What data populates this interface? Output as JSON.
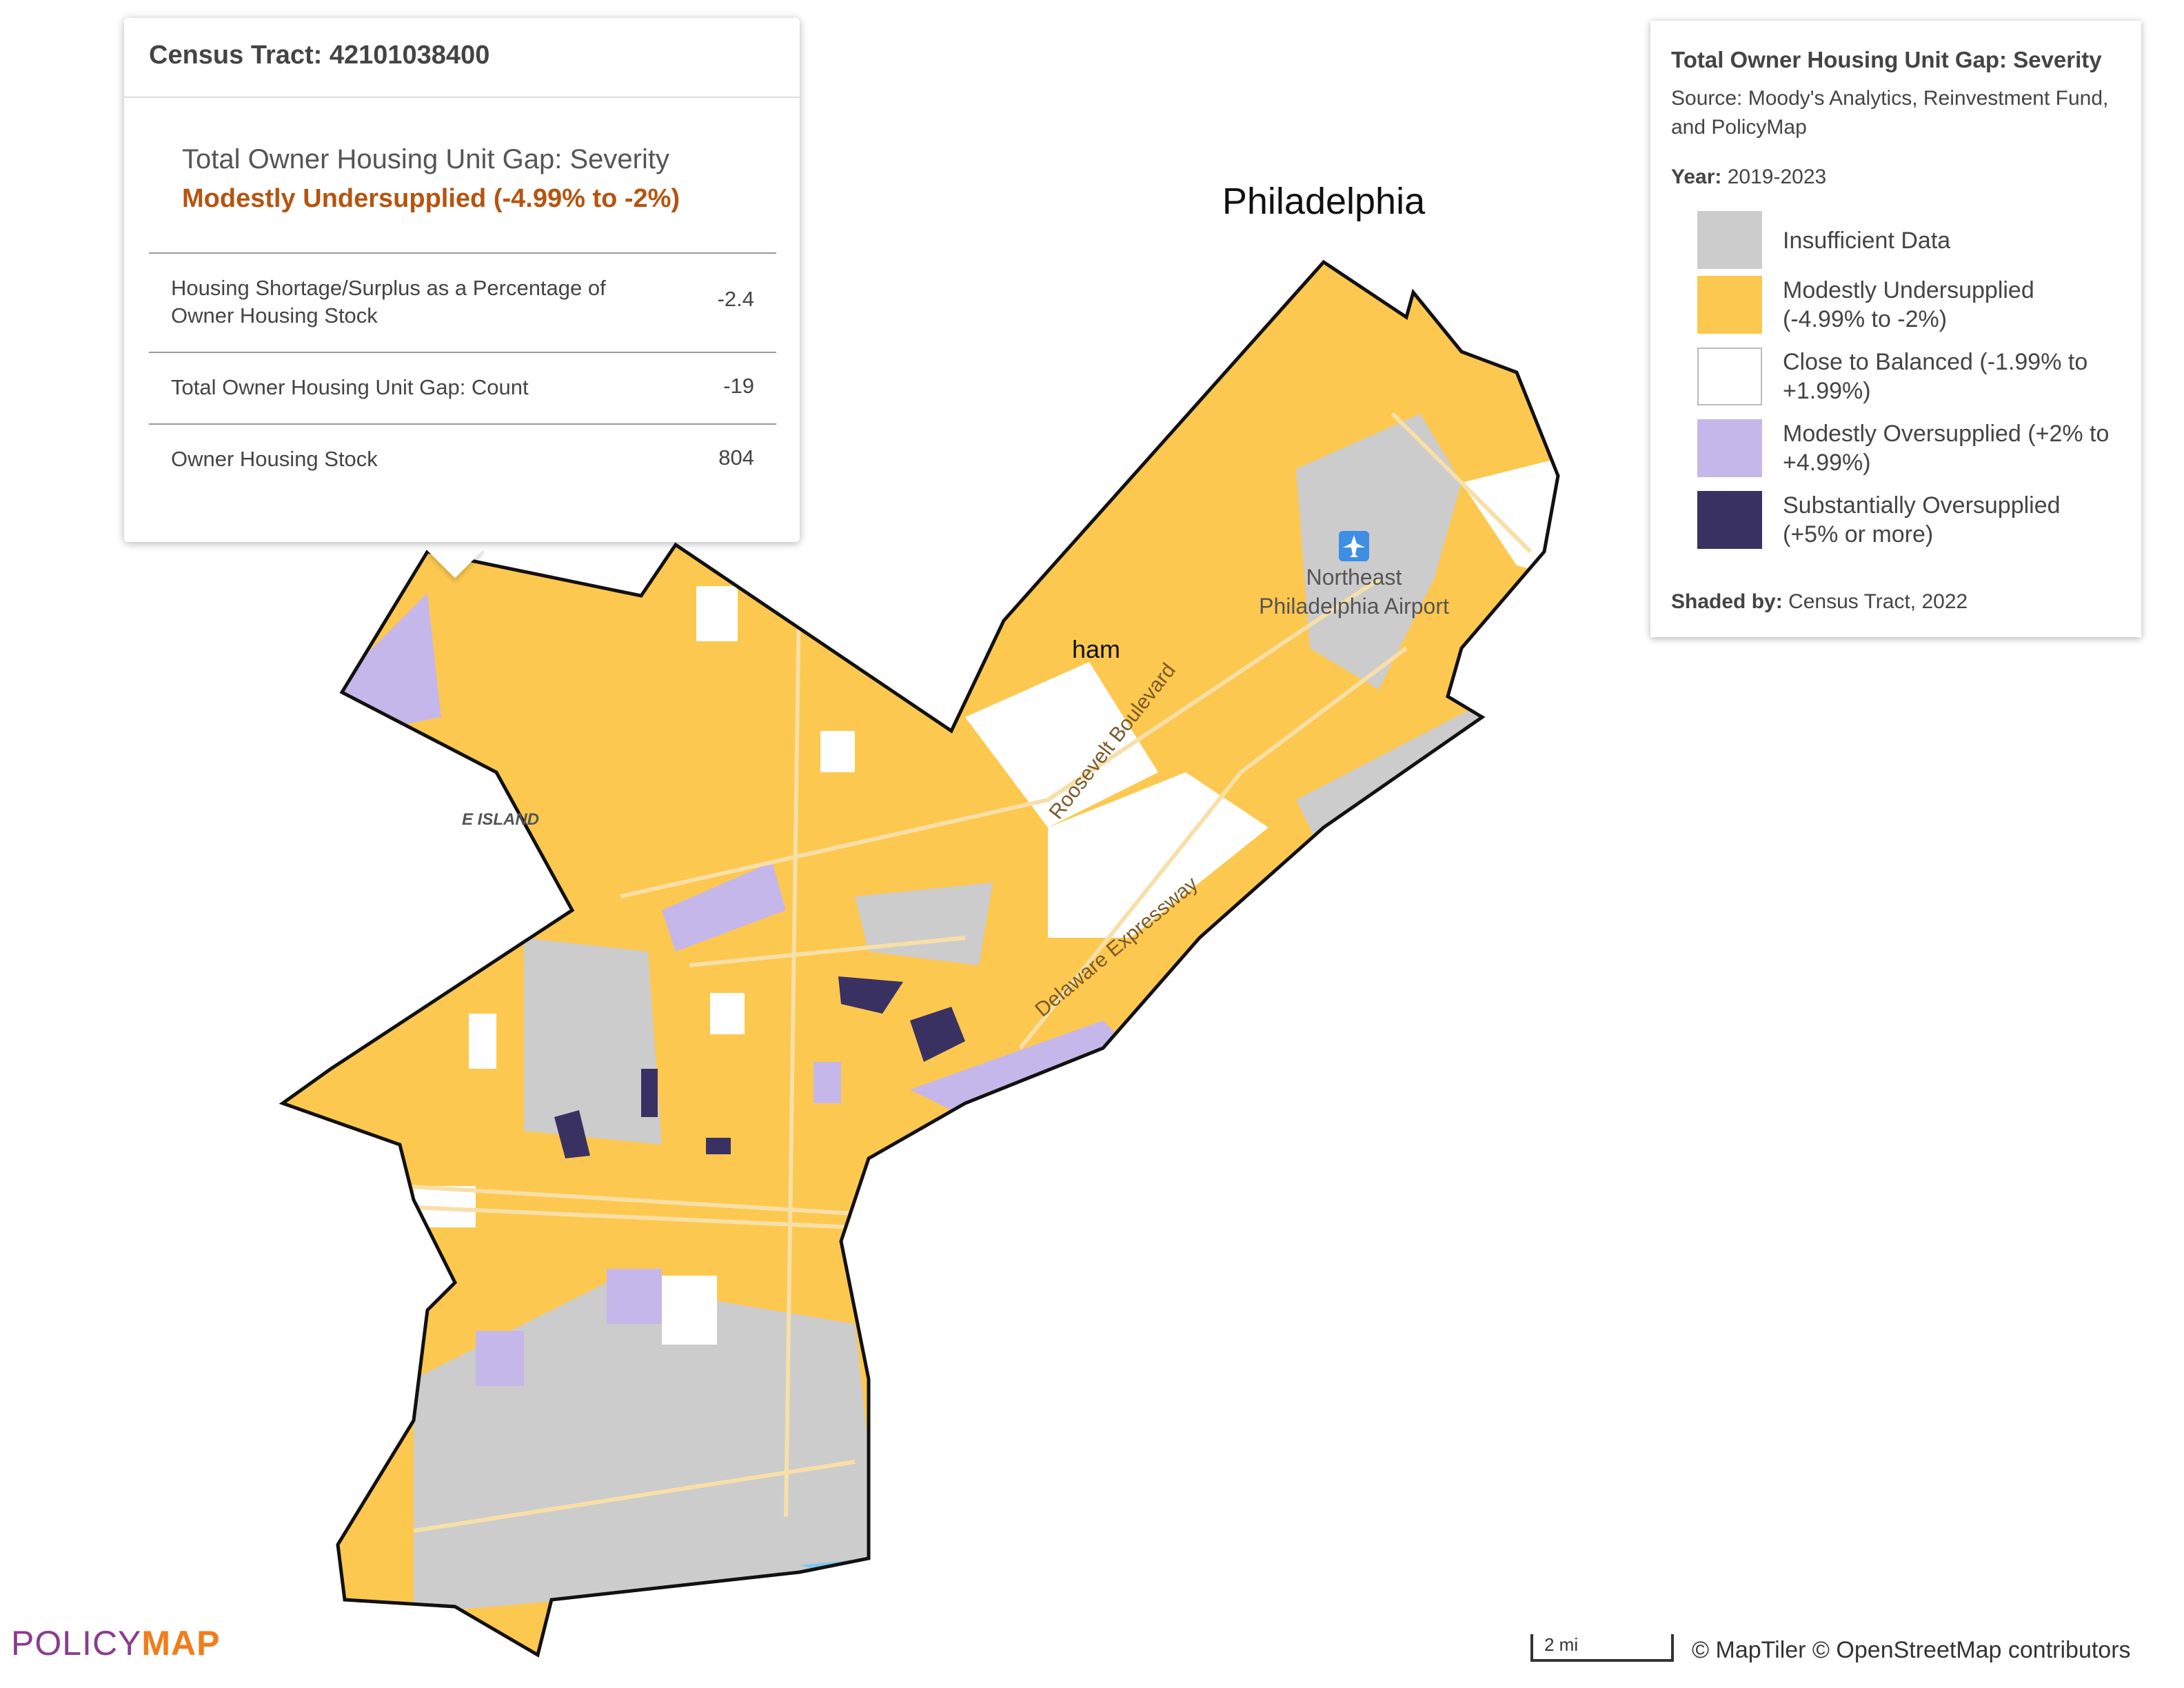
{
  "popup": {
    "title": "Census Tract: 42101038400",
    "layer": "Total Owner Housing Unit Gap: Severity",
    "category": "Modestly Undersupplied (-4.99% to -2%)",
    "rows": [
      {
        "label": "Housing Shortage/Surplus as a Percentage of Owner Housing Stock",
        "value": -2.4
      },
      {
        "label": "Total Owner Housing Unit Gap: Count",
        "value": -19
      },
      {
        "label": "Owner Housing Stock",
        "value": 804
      }
    ]
  },
  "legend": {
    "title": "Total Owner Housing Unit Gap: Severity",
    "source": "Source: Moody's Analytics, Reinvestment Fund, and PolicyMap",
    "year_label": "Year:",
    "year": "2019-2023",
    "items": [
      {
        "label": "Insufficient Data",
        "color": "#cccccc"
      },
      {
        "label": "Modestly Undersupplied (-4.99% to -2%)",
        "color": "#fdc84f"
      },
      {
        "label": "Close to Balanced (-1.99% to +1.99%)",
        "color": "#ffffff"
      },
      {
        "label": "Modestly Oversupplied (+2% to +4.99%)",
        "color": "#c6b7ea"
      },
      {
        "label": "Substantially Oversupplied (+5% or more)",
        "color": "#3a3163"
      }
    ],
    "shaded_label": "Shaded by:",
    "shaded": "Census Tract, 2022"
  },
  "map_labels": {
    "city": "Philadelphia",
    "airport_1": "Northeast",
    "airport_2": "Philadelphia Airport",
    "road_1": "Roosevelt Boulevard",
    "road_2": "Delaware Expressway",
    "place_1": "ham",
    "place_2": "E ISLAND"
  },
  "logo": {
    "part_1": "POLICY",
    "part_2": "MAP"
  },
  "scale": "2 mi",
  "attribution": "© MapTiler © OpenStreetMap contributors"
}
